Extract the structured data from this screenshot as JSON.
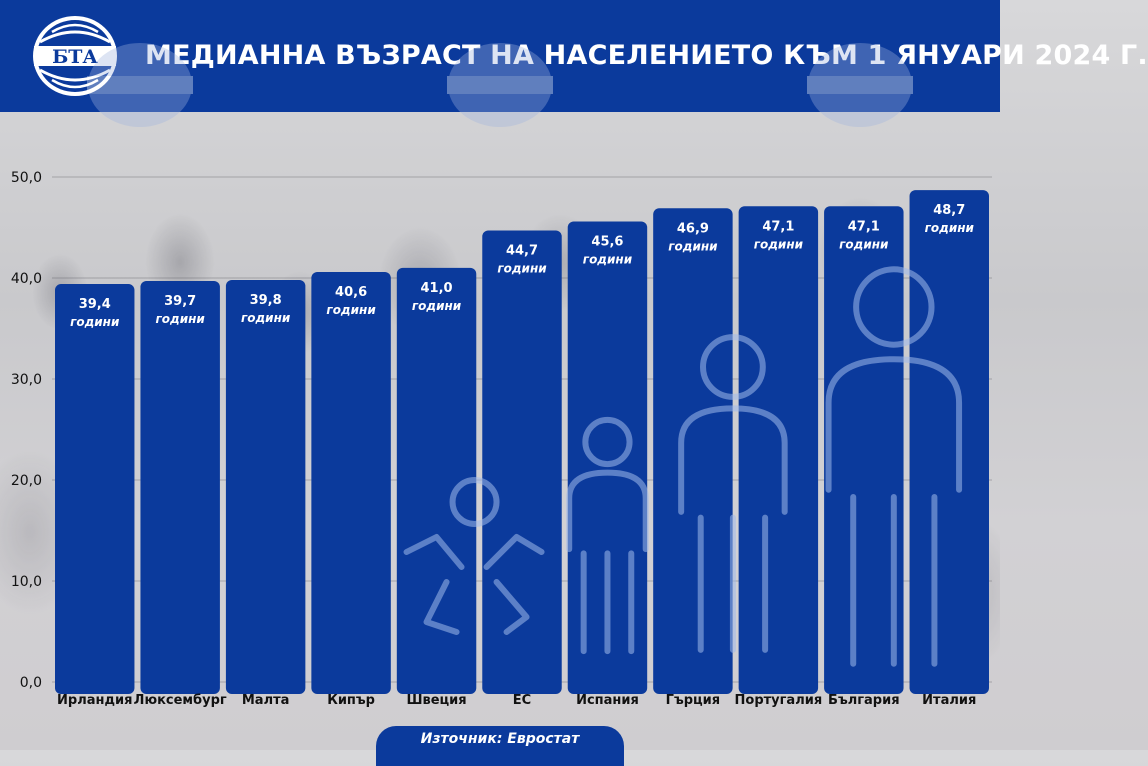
{
  "header": {
    "logo_text": "БТА",
    "title": "МЕДИАННА ВЪЗРАСТ НА НАСЕЛЕНИЕТО КЪМ 1 ЯНУАРИ 2024 Г."
  },
  "source": "Източник: Евростат",
  "colors": {
    "brand": "#0b3a9c",
    "bar": "#0b3a9c",
    "text_on_bar": "#ffffff",
    "axis_text": "#111111"
  },
  "chart_data": {
    "type": "bar",
    "title": "МЕДИАННА ВЪЗРАСТ НА НАСЕЛЕНИЕТО КЪМ 1 ЯНУАРИ 2024 Г.",
    "xlabel": "",
    "ylabel": "",
    "ylim": [
      0,
      50
    ],
    "yticks": [
      0,
      10,
      20,
      30,
      40,
      50
    ],
    "ytick_labels": [
      "0,0",
      "10,0",
      "20,0",
      "30,0",
      "40,0",
      "50,0"
    ],
    "grid": true,
    "categories": [
      "Ирландия",
      "Люксембург",
      "Малта",
      "Кипър",
      "Швеция",
      "ЕС",
      "Испания",
      "Гърция",
      "Португалия",
      "България",
      "Италия"
    ],
    "values": [
      39.4,
      39.7,
      39.8,
      40.6,
      41.0,
      44.7,
      45.6,
      46.9,
      47.1,
      47.1,
      48.7
    ],
    "value_labels": [
      "39,4",
      "39,7",
      "39,8",
      "40,6",
      "41,0",
      "44,7",
      "45,6",
      "46,9",
      "47,1",
      "47,1",
      "48,7"
    ],
    "unit_labels": [
      "години",
      "години",
      "години",
      "години",
      "години",
      "години",
      "години",
      "години",
      "години",
      "години",
      "години"
    ]
  }
}
